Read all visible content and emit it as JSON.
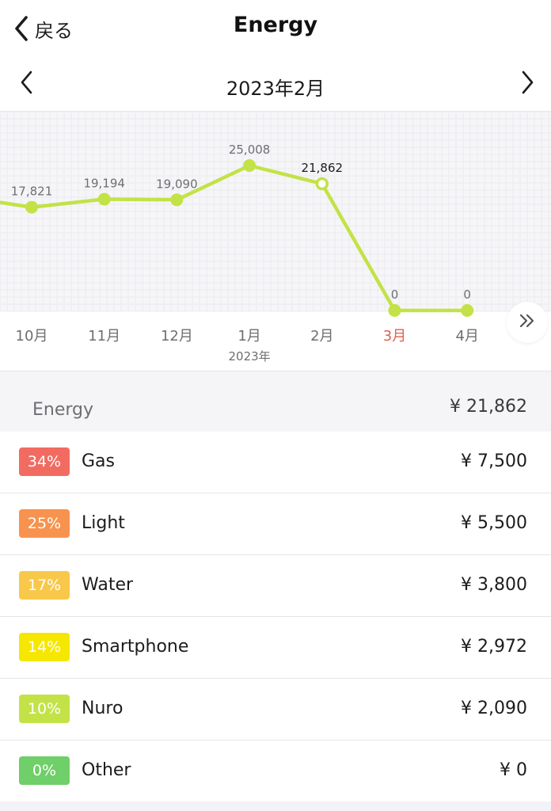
{
  "navbar": {
    "back_label": "戻る",
    "title": "Energy"
  },
  "month_nav": {
    "label": "2023年2月"
  },
  "chart_data": {
    "type": "line",
    "categories": [
      "10月",
      "11月",
      "12月",
      "1月",
      "2月",
      "3月",
      "4月"
    ],
    "year_label": "2023年",
    "values": [
      17821,
      19194,
      19090,
      25008,
      21862,
      0,
      0
    ],
    "value_labels": [
      "17,821",
      "19,194",
      "19,090",
      "25,008",
      "21,862",
      "0",
      "0"
    ],
    "selected_index": 4,
    "highlight_index": 5,
    "line_color": "#c3e247",
    "highlight_color": "#e0604a",
    "ylim": [
      0,
      30000
    ]
  },
  "summary": {
    "label": "Energy",
    "amount": "¥ 21,862"
  },
  "categories": [
    {
      "pct": "34%",
      "name": "Gas",
      "amount": "¥ 7,500",
      "color": "#f26b61"
    },
    {
      "pct": "25%",
      "name": "Light",
      "amount": "¥ 5,500",
      "color": "#f7934f"
    },
    {
      "pct": "17%",
      "name": "Water",
      "amount": "¥ 3,800",
      "color": "#f8c84a"
    },
    {
      "pct": "14%",
      "name": "Smartphone",
      "amount": "¥ 2,972",
      "color": "#f5e700"
    },
    {
      "pct": "10%",
      "name": "Nuro",
      "amount": "¥ 2,090",
      "color": "#c3e247"
    },
    {
      "pct": "0%",
      "name": "Other",
      "amount": "¥ 0",
      "color": "#6fcf68"
    }
  ]
}
